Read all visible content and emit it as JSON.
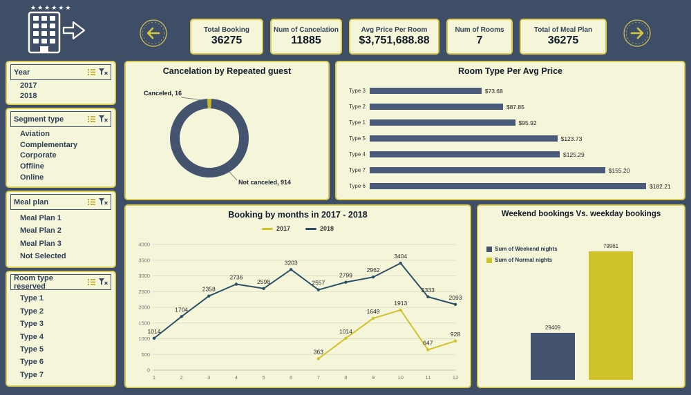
{
  "theme": {
    "background": "#3d4e66",
    "panel": "#f5f5da",
    "border_yellow": "#d9ca52",
    "navy_text": "#314358",
    "accent_yellow": "#cfc22b",
    "dark_slate": "#44546e"
  },
  "header": {
    "kpis": [
      {
        "label": "Total Booking",
        "value": "36275"
      },
      {
        "label": "Num of Cancelation",
        "value": "11885"
      },
      {
        "label": "Avg Price Per Room",
        "value": "$3,751,688.88"
      },
      {
        "label": "Num of Rooms",
        "value": "7"
      },
      {
        "label": "Total of Meal Plan",
        "value": "36275"
      }
    ]
  },
  "slicers": [
    {
      "title": "Year",
      "items": [
        "2017",
        "2018"
      ]
    },
    {
      "title": "Segment type",
      "items": [
        "Aviation",
        "Complementary",
        "Corporate",
        "Offline",
        "Online"
      ]
    },
    {
      "title": "Meal plan",
      "items": [
        "Meal Plan 1",
        "Meal Plan 2",
        "Meal Plan 3",
        "Not Selected"
      ]
    },
    {
      "title": "Room type reserved",
      "items": [
        "Type 1",
        "Type 2",
        "Type 3",
        "Type 4",
        "Type 5",
        "Type 6",
        "Type 7"
      ]
    }
  ],
  "chart_data": [
    {
      "id": "cancelation-donut",
      "type": "pie",
      "title": "Cancelation by Repeated guest",
      "slices": [
        {
          "label": "Canceled",
          "value": 16,
          "color": "#c9bc2b"
        },
        {
          "label": "Not canceled",
          "value": 914,
          "color": "#44546e"
        }
      ]
    },
    {
      "id": "room-type-avg-price",
      "type": "bar",
      "orientation": "horizontal",
      "title": "Room Type Per Avg Price",
      "bar_color": "#4a5a7a",
      "categories": [
        "Type 3",
        "Type 2",
        "Type 1",
        "Type 5",
        "Type 4",
        "Type 7",
        "Type 6"
      ],
      "values": [
        73.68,
        87.85,
        95.92,
        123.73,
        125.29,
        155.2,
        182.21
      ],
      "labels": [
        "$73.68",
        "$87.85",
        "$95.92",
        "$123.73",
        "$125.29",
        "$155.20",
        "$182.21"
      ]
    },
    {
      "id": "booking-by-months",
      "type": "line",
      "title": "Booking by months in 2017 - 2018",
      "x": [
        "1",
        "2",
        "3",
        "4",
        "5",
        "6",
        "7",
        "8",
        "9",
        "10",
        "11",
        "12"
      ],
      "ylim": [
        0,
        4000
      ],
      "yticks": [
        0,
        500,
        1000,
        1500,
        2000,
        2500,
        3000,
        3500,
        4000
      ],
      "grid": true,
      "legend_position": "top",
      "series": [
        {
          "name": "2017",
          "color": "#cfc22b",
          "values": [
            null,
            null,
            null,
            null,
            null,
            null,
            363,
            1014,
            1649,
            1913,
            647,
            928
          ]
        },
        {
          "name": "2018",
          "color": "#2b5068",
          "values": [
            1014,
            1704,
            2358,
            2736,
            2598,
            3203,
            2557,
            2799,
            2962,
            3404,
            2333,
            2093
          ]
        }
      ]
    },
    {
      "id": "weekend-vs-weekday",
      "type": "bar",
      "title": "Weekend bookings  Vs. weekday bookings",
      "legend_position": "left",
      "series": [
        {
          "name": "Sum of Weekend nights",
          "value": 29409,
          "color": "#44546e"
        },
        {
          "name": "Sum of Normal nights",
          "value": 79961,
          "color": "#cfc22b"
        }
      ]
    }
  ]
}
